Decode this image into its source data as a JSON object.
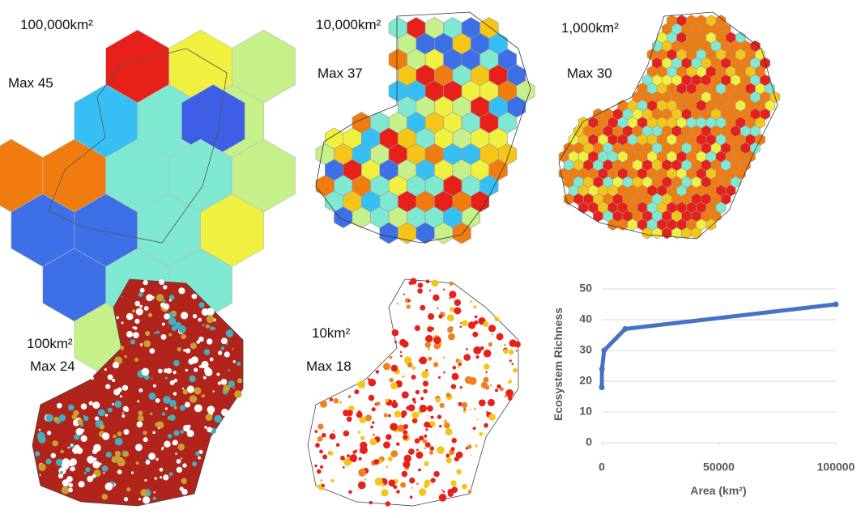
{
  "panels": [
    {
      "area": "100,000km²",
      "max": "Max 45"
    },
    {
      "area": "10,000km²",
      "max": "Max 37"
    },
    {
      "area": "1,000km²",
      "max": "Max 30"
    },
    {
      "area": "100km²",
      "max": "Max 24"
    },
    {
      "area": "10km²",
      "max": "Max 18"
    }
  ],
  "chart_data": {
    "type": "line",
    "x": [
      10,
      100,
      1000,
      10000,
      100000
    ],
    "series": [
      {
        "color": "#4472c4",
        "values": [
          18,
          24,
          30,
          37,
          45
        ]
      }
    ],
    "xlim": [
      0,
      100000
    ],
    "ylim": [
      0,
      50
    ],
    "xticks": [
      0,
      50000,
      100000
    ],
    "yticks": [
      0,
      10,
      20,
      30,
      40,
      50
    ],
    "xlabel": "Area (km²)",
    "ylabel": "Ecosystem Richness",
    "grid": true
  }
}
